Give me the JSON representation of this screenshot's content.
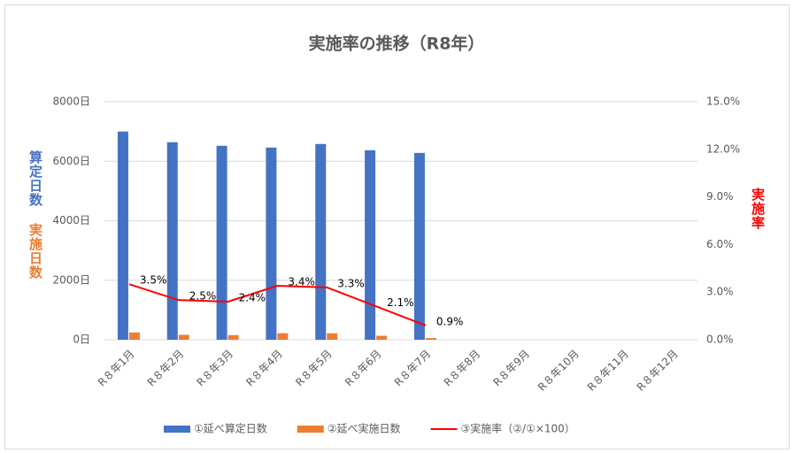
{
  "chart_data": {
    "type": "bar-line",
    "title": "実施率の推移（R8年）",
    "ylabel": "算定日数",
    "ylabel2": "実施日数",
    "y2label": "実施率",
    "categories": [
      "R８年1月",
      "R８年2月",
      "R８年3月",
      "R８年4月",
      "R８年5月",
      "R８年6月",
      "R８年7月",
      "R８年8月",
      "R８年9月",
      "R８年10月",
      "R８年11月",
      "R８年12月"
    ],
    "series": [
      {
        "name": "①延べ算定日数",
        "color": "#4472c4",
        "type": "bar",
        "values": [
          7000,
          6640,
          6520,
          6460,
          6580,
          6370,
          6280,
          null,
          null,
          null,
          null,
          null
        ]
      },
      {
        "name": "②延べ実施日数",
        "color": "#ed7d31",
        "type": "bar",
        "values": [
          245,
          166,
          156,
          220,
          217,
          134,
          57,
          null,
          null,
          null,
          null,
          null
        ]
      },
      {
        "name": "③実施率（②/①×100）",
        "color": "#ff0000",
        "type": "line",
        "axis": "y2",
        "values": [
          3.5,
          2.5,
          2.4,
          3.4,
          3.3,
          2.1,
          0.9,
          null,
          null,
          null,
          null,
          null
        ],
        "value_labels": [
          "3.5%",
          "2.5%",
          "2.4%",
          "3.4%",
          "3.3%",
          "2.1%",
          "0.9%",
          null,
          null,
          null,
          null,
          null
        ]
      }
    ],
    "ylim": [
      0,
      8000
    ],
    "yticks": [
      {
        "value": 0,
        "label": "0日"
      },
      {
        "value": 2000,
        "label": "2000日"
      },
      {
        "value": 4000,
        "label": "4000日"
      },
      {
        "value": 6000,
        "label": "6000日"
      },
      {
        "value": 8000,
        "label": "8000日"
      }
    ],
    "y2lim": [
      0,
      15
    ],
    "y2ticks": [
      {
        "value": 0,
        "label": "0.0%"
      },
      {
        "value": 3,
        "label": "3.0%"
      },
      {
        "value": 6,
        "label": "6.0%"
      },
      {
        "value": 9,
        "label": "9.0%"
      },
      {
        "value": 12,
        "label": "12.0%"
      },
      {
        "value": 15,
        "label": "15.0%"
      }
    ],
    "grid": true,
    "legend": "bottom"
  }
}
